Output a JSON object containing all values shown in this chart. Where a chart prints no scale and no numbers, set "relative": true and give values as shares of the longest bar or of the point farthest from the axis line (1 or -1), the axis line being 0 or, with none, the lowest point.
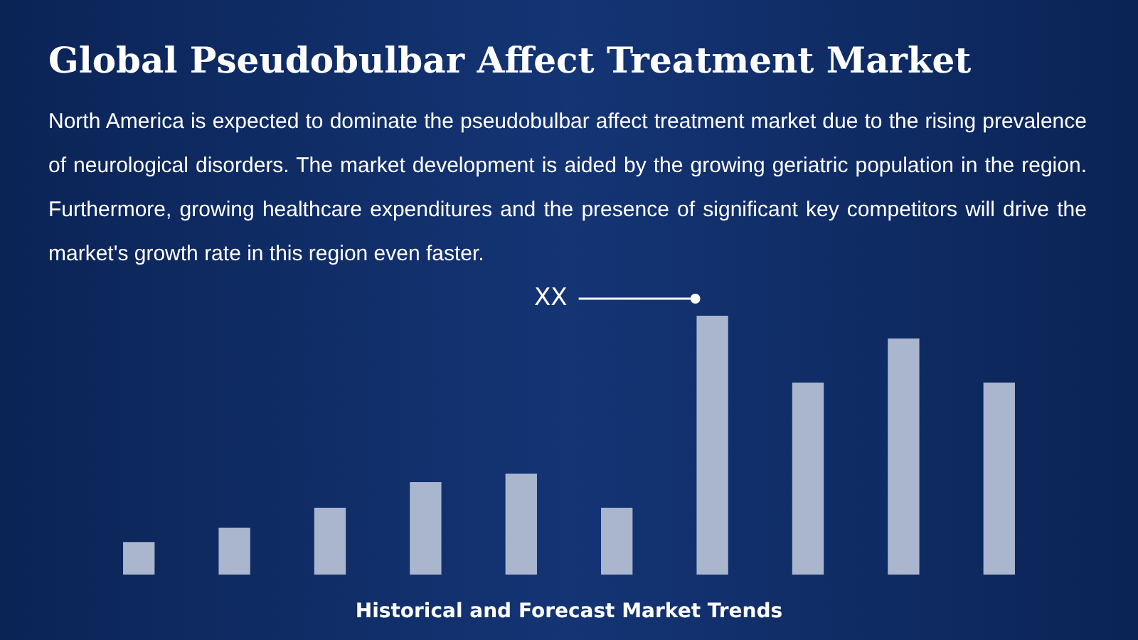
{
  "chart_data": {
    "type": "bar",
    "relative": true,
    "title": "Global Pseudobulbar Affect Treatment Market",
    "subtitle": "North America is expected to dominate the pseudobulbar affect treatment market due to the rising prevalence of neurological disorders. The market development is aided by the growing geriatric population in the region. Furthermore, growing healthcare expenditures and the presence of significant key competitors will drive the market's growth rate in this region even faster.",
    "xlabel": "Historical and Forecast Market Trends",
    "annotations": [
      "XX"
    ],
    "categories": [
      null,
      null,
      null,
      null,
      null,
      null,
      null,
      null,
      null,
      null
    ],
    "values": [
      0.126,
      0.181,
      0.258,
      0.357,
      0.39,
      0.258,
      1,
      0.742,
      0.912,
      0.742
    ],
    "color": "#a9b6cd"
  }
}
